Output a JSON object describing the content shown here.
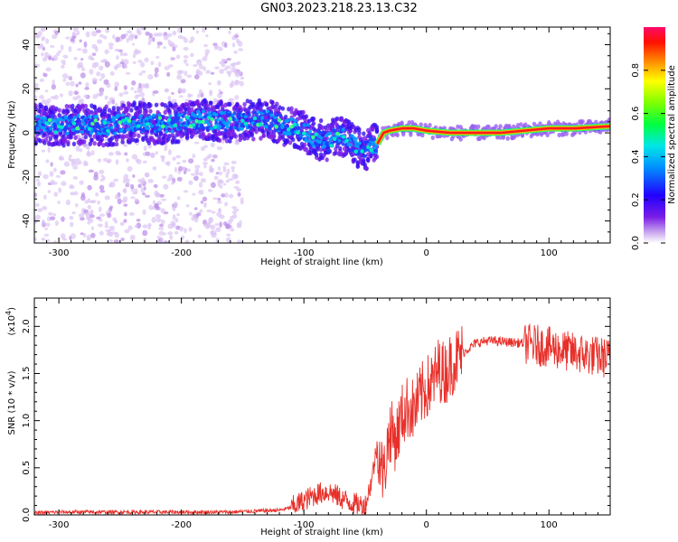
{
  "title": "GN03.2023.218.23.13.C32",
  "colors": {
    "snr_line": "#e8302a",
    "axis": "#000000",
    "spectrum_low": "#cfa8f0",
    "spectrum_high": "#ff0a5a"
  },
  "chart_data": [
    {
      "type": "heatmap",
      "xlabel": "Height of straight line (km)",
      "ylabel": "Frequency (Hz)",
      "xlim": [
        -320,
        150
      ],
      "ylim": [
        -50,
        48
      ],
      "xticks": [
        -300,
        -200,
        -100,
        0,
        100
      ],
      "xtick_labels": [
        "-300",
        "-200",
        "-100",
        "0",
        "100"
      ],
      "yticks": [
        -40,
        -20,
        0,
        20,
        40
      ],
      "ytick_labels": [
        "-40",
        "-20",
        "0",
        "20",
        "40"
      ],
      "colormap": "rainbow (purple to red/magenta)",
      "colorbar": {
        "label": "Normalized spectral amplitude",
        "range": [
          0.0,
          1.0
        ],
        "ticks": [
          0.0,
          0.2,
          0.4,
          0.6,
          0.8
        ],
        "tick_labels": [
          "0.0",
          "0.2",
          "0.4",
          "0.6",
          "0.8"
        ]
      },
      "dominant_frequency_track": {
        "x": [
          -320,
          -300,
          -280,
          -260,
          -240,
          -220,
          -200,
          -180,
          -160,
          -140,
          -130,
          -120,
          -110,
          -100,
          -90,
          -80,
          -70,
          -60,
          -55,
          -50,
          -45,
          -40,
          -35,
          -30,
          -20,
          -10,
          0,
          20,
          40,
          60,
          80,
          100,
          120,
          150
        ],
        "y": [
          4,
          3,
          4,
          3,
          5,
          4,
          5,
          6,
          5,
          6,
          6,
          4,
          3,
          1,
          -3,
          -4,
          -1,
          -5,
          -7,
          -8,
          -5,
          -5,
          0,
          1,
          2,
          2,
          1,
          0,
          0,
          0,
          1,
          2,
          2,
          3
        ]
      }
    },
    {
      "type": "line",
      "xlabel": "Height of straight line (km)",
      "ylabel": "SNR (10 * v/v)",
      "scale_label": "(x10",
      "scale_exponent": "4",
      "scale_close": ")",
      "xlim": [
        -320,
        150
      ],
      "ylim": [
        0,
        2.3
      ],
      "xticks": [
        -300,
        -200,
        -100,
        0,
        100
      ],
      "xtick_labels": [
        "-300",
        "-200",
        "-100",
        "0",
        "100"
      ],
      "yticks": [
        0,
        0.5,
        1.0,
        1.5,
        2.0
      ],
      "ytick_labels": [
        "0.0",
        "0.5",
        "1.0",
        "1.5",
        "2.0"
      ],
      "series": [
        {
          "x": [
            -320,
            -300,
            -280,
            -260,
            -240,
            -220,
            -200,
            -180,
            -160,
            -140,
            -120,
            -110,
            -100,
            -90,
            -80,
            -70,
            -60,
            -50,
            -45,
            -40,
            -35,
            -30,
            -25,
            -20,
            -15,
            -10,
            -5,
            0,
            5,
            10,
            15,
            20,
            30,
            40,
            50,
            60,
            70,
            80,
            90,
            100,
            110,
            120,
            130,
            140,
            150
          ],
          "y": [
            0.02,
            0.03,
            0.03,
            0.03,
            0.03,
            0.03,
            0.03,
            0.03,
            0.03,
            0.04,
            0.05,
            0.08,
            0.15,
            0.22,
            0.25,
            0.18,
            0.12,
            0.1,
            0.35,
            0.75,
            0.4,
            0.9,
            0.8,
            1.05,
            1.15,
            1.1,
            1.25,
            1.35,
            1.4,
            1.55,
            1.5,
            1.6,
            1.72,
            1.82,
            1.85,
            1.84,
            1.83,
            1.82,
            1.8,
            1.78,
            1.75,
            1.72,
            1.7,
            1.68,
            1.66
          ]
        }
      ]
    }
  ]
}
